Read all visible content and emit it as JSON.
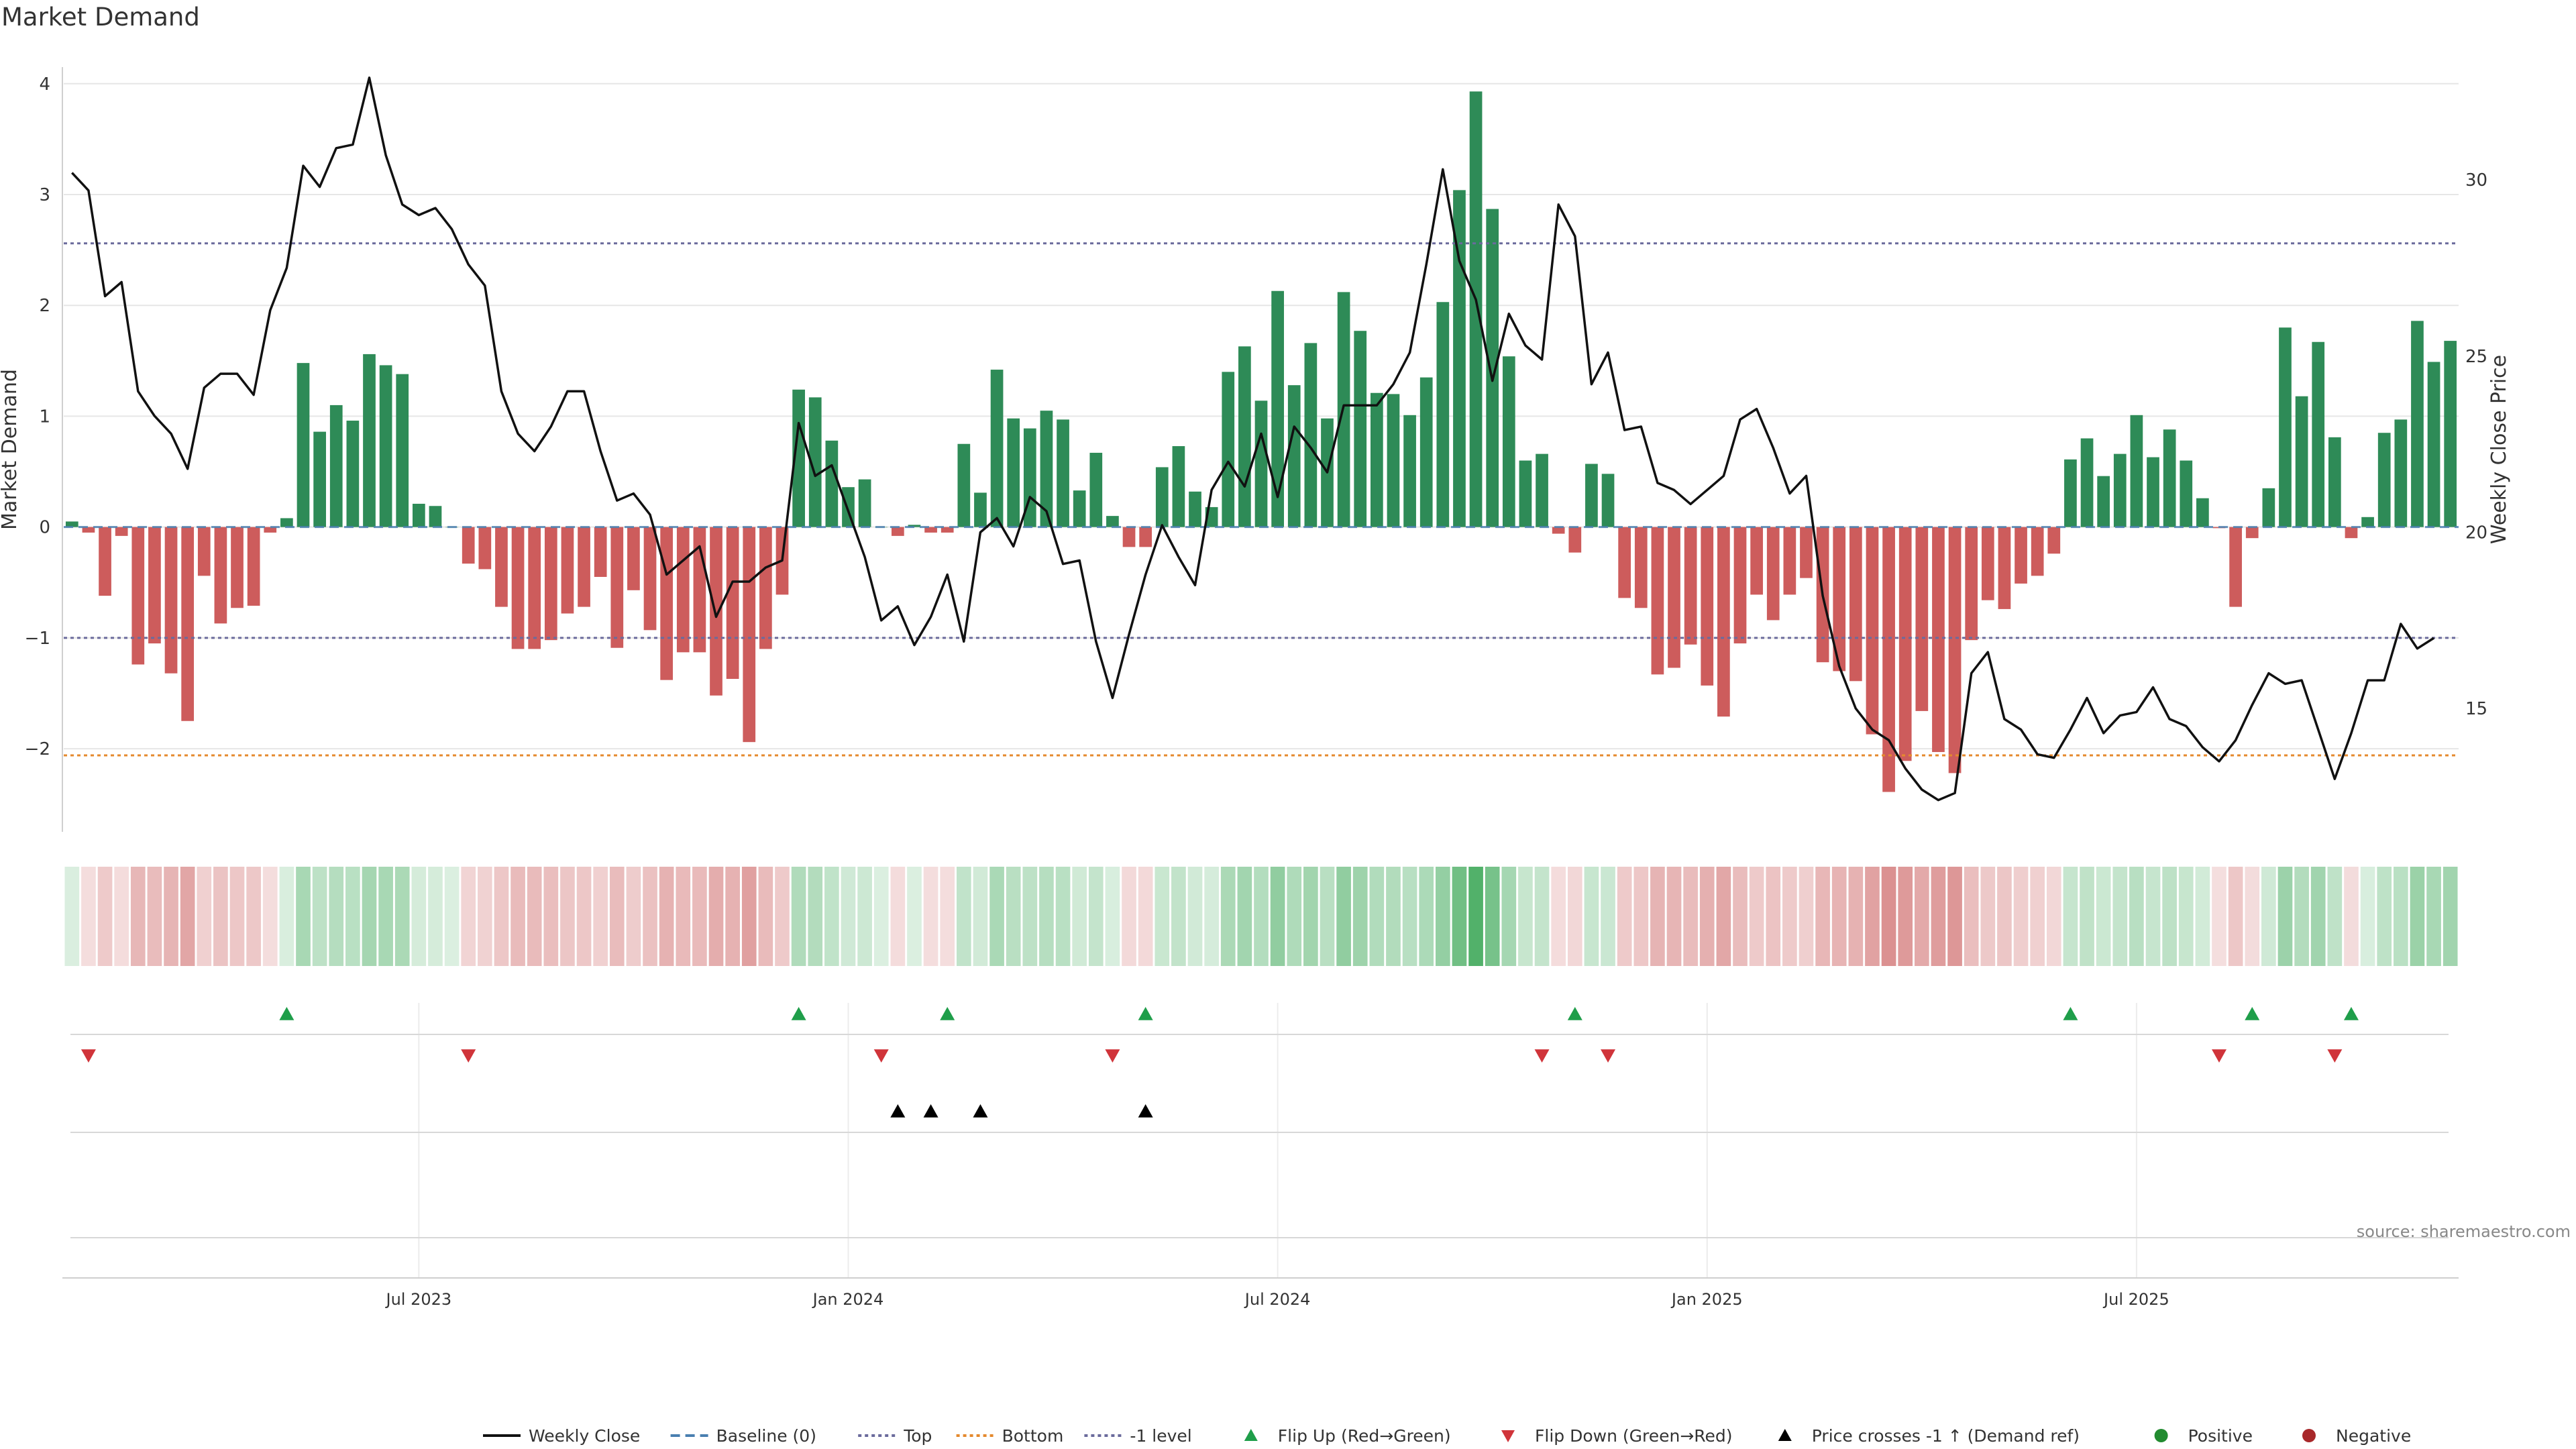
{
  "chart_data": {
    "type": "bar",
    "title": "Market Demand",
    "ylabel": "Market Demand",
    "y2label": "Weekly Close Price",
    "ylim": [
      -2.75,
      4.15
    ],
    "y2lim": [
      11.5,
      33.2
    ],
    "yticks": [
      4,
      3,
      2,
      1,
      0,
      -1,
      -2
    ],
    "ytick_labels": [
      "4",
      "3",
      "2",
      "1",
      "0",
      "−1",
      "−2"
    ],
    "y2ticks": [
      30,
      25,
      20,
      15
    ],
    "y2tick_labels": [
      "30",
      "25",
      "20",
      "15"
    ],
    "xticks": [
      21.5,
      47.5,
      73.5,
      99.5,
      125.5
    ],
    "xtick_labels": [
      "Jul 2023",
      "Jan 2024",
      "Jul 2024",
      "Jan 2025",
      "Jul 2025"
    ],
    "ref_lines": {
      "top": 2.56,
      "bottom": -2.06,
      "minus_one": -1.0,
      "baseline": 0
    },
    "demand": [
      0.05,
      -0.05,
      -0.62,
      -0.08,
      -1.24,
      -1.05,
      -1.32,
      -1.75,
      -0.44,
      -0.87,
      -0.73,
      -0.71,
      -0.05,
      0.08,
      1.48,
      0.86,
      1.1,
      0.96,
      1.56,
      1.46,
      1.38,
      0.21,
      0.19,
      0,
      -0.33,
      -0.38,
      -0.72,
      -1.1,
      -1.1,
      -1.02,
      -0.78,
      -0.72,
      -0.45,
      -1.09,
      -0.57,
      -0.93,
      -1.38,
      -1.13,
      -1.13,
      -1.52,
      -1.37,
      -1.94,
      -1.1,
      -0.61,
      1.24,
      1.17,
      0.78,
      0.36,
      0.43,
      0,
      -0.08,
      0.02,
      -0.05,
      -0.05,
      0.75,
      0.31,
      1.42,
      0.98,
      0.89,
      1.05,
      0.97,
      0.33,
      0.67,
      0.1,
      -0.18,
      -0.18,
      0.54,
      0.73,
      0.32,
      0.18,
      1.4,
      1.63,
      1.14,
      2.13,
      1.28,
      1.66,
      0.98,
      2.12,
      1.77,
      1.21,
      1.2,
      1.01,
      1.35,
      2.03,
      3.04,
      3.93,
      2.87,
      1.54,
      0.6,
      0.66,
      -0.06,
      -0.23,
      0.57,
      0.48,
      -0.64,
      -0.73,
      -1.33,
      -1.27,
      -1.06,
      -1.43,
      -1.71,
      -1.05,
      -0.61,
      -0.84,
      -0.61,
      -0.46,
      -1.22,
      -1.3,
      -1.39,
      -1.87,
      -2.39,
      -2.11,
      -1.66,
      -2.03,
      -2.22,
      -1.02,
      -0.66,
      -0.74,
      -0.51,
      -0.44,
      -0.24,
      0.61,
      0.8,
      0.46,
      0.66,
      1.01,
      0.63,
      0.88,
      0.6,
      0.26,
      -0.01,
      -0.72,
      -0.1,
      0.35,
      1.8,
      1.18,
      1.67,
      0.81,
      -0.1,
      0.09,
      0.85,
      0.97,
      1.86,
      1.49,
      1.68
    ],
    "weekly_close": [
      30.2,
      29.7,
      26.7,
      27.1,
      24.0,
      23.3,
      22.8,
      21.8,
      24.1,
      24.5,
      24.5,
      23.9,
      26.3,
      27.5,
      30.4,
      29.8,
      30.9,
      31.0,
      32.9,
      30.7,
      29.3,
      29.0,
      29.2,
      28.6,
      27.6,
      27.0,
      24.0,
      22.8,
      22.3,
      23.0,
      24.0,
      24.0,
      22.3,
      20.9,
      21.1,
      20.5,
      18.8,
      19.2,
      19.6,
      17.6,
      18.6,
      18.6,
      19.0,
      19.2,
      23.1,
      21.6,
      21.9,
      20.6,
      19.3,
      17.5,
      17.9,
      16.8,
      17.6,
      18.8,
      16.9,
      20.0,
      20.4,
      19.6,
      21.0,
      20.6,
      19.1,
      19.2,
      16.9,
      15.3,
      17.1,
      18.8,
      20.2,
      19.3,
      18.5,
      21.2,
      22.0,
      21.3,
      22.8,
      21.0,
      23.0,
      22.4,
      21.7,
      23.6,
      23.6,
      23.6,
      24.2,
      25.1,
      27.6,
      30.3,
      27.7,
      26.6,
      24.3,
      26.2,
      25.3,
      24.9,
      29.3,
      28.4,
      24.2,
      25.1,
      22.9,
      23.0,
      21.4,
      21.2,
      20.8,
      21.2,
      21.6,
      23.2,
      23.5,
      22.4,
      21.1,
      21.6,
      18.2,
      16.2,
      15.0,
      14.4,
      14.1,
      13.3,
      12.7,
      12.4,
      12.6,
      16.0,
      16.6,
      14.7,
      14.4,
      13.7,
      13.6,
      14.4,
      15.3,
      14.3,
      14.8,
      14.9,
      15.6,
      14.7,
      14.5,
      13.9,
      13.5,
      14.1,
      15.1,
      16.0,
      15.7,
      15.8,
      14.4,
      13.0,
      14.3,
      15.8,
      15.8,
      17.4,
      16.7,
      17.0
    ],
    "flip_up": [
      13,
      44,
      53,
      65,
      91,
      121,
      132,
      138
    ],
    "flip_down": [
      1,
      24,
      49,
      63,
      89,
      93,
      130,
      137
    ],
    "price_cross": [
      50,
      52,
      55,
      65
    ],
    "legend": [
      {
        "label": "Weekly Close",
        "kind": "line",
        "color": "#111111"
      },
      {
        "label": "Baseline (0)",
        "kind": "dash",
        "color": "#4a7fb0"
      },
      {
        "label": "Top",
        "kind": "dot",
        "color": "#6b6b9c"
      },
      {
        "label": "Bottom",
        "kind": "dot",
        "color": "#e58a2e"
      },
      {
        "label": "-1 level",
        "kind": "dot",
        "color": "#6b6b9c"
      },
      {
        "label": "Flip Up (Red→Green)",
        "kind": "tri-up",
        "color": "#1f9e4a"
      },
      {
        "label": "Flip Down (Green→Red)",
        "kind": "tri-down",
        "color": "#d0343a"
      },
      {
        "label": "Price crosses -1 ↑ (Demand ref)",
        "kind": "tri-up",
        "color": "#000000"
      },
      {
        "label": "Positive",
        "kind": "circle",
        "color": "#228b30"
      },
      {
        "label": "Negative",
        "kind": "circle",
        "color": "#a8282a"
      }
    ],
    "source": "source: sharemaestro.com"
  },
  "colors": {
    "positive_bar": "#2e8b57",
    "negative_bar": "#cd5c5c",
    "price_line": "#111111",
    "grid": "#e6e6e6"
  }
}
